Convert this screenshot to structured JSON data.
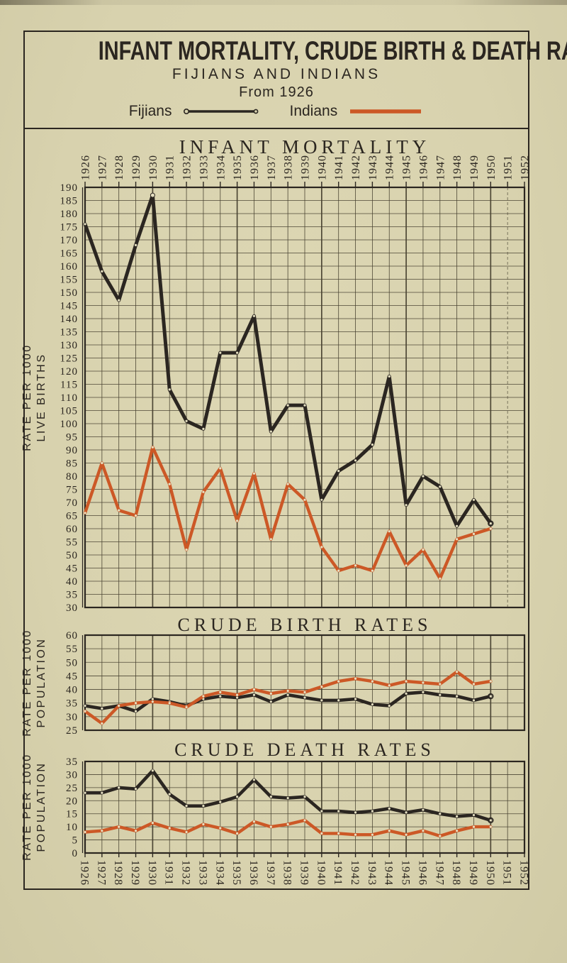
{
  "header": {
    "title": "INFANT MORTALITY, CRUDE BIRTH & DEATH RATES.",
    "subtitle": "FIJIANS AND INDIANS",
    "period": "From 1926"
  },
  "legend": {
    "fijians_label": "Fijians",
    "indians_label": "Indians"
  },
  "colors": {
    "paper": "#d8d2ae",
    "ink": "#2b2620",
    "grid": "#474130",
    "fijians": "#2b2621",
    "indians": "#cc5826",
    "marker": "#e6e0c2"
  },
  "chart_data": [
    {
      "type": "line",
      "title": "INFANT MORTALITY",
      "ylabel": "RATE PER 1000 LIVE BIRTHS",
      "ylabel_lines": [
        "RATE PER 1000",
        "LIVE BIRTHS"
      ],
      "x": [
        "1926",
        "1927",
        "1928",
        "1929",
        "1930",
        "1931",
        "1932",
        "1933",
        "1934",
        "1935",
        "1936",
        "1937",
        "1938",
        "1939",
        "1940",
        "1941",
        "1942",
        "1943",
        "1944",
        "1945",
        "1946",
        "1947",
        "1948",
        "1949",
        "1950",
        "1951",
        "1952"
      ],
      "x_axis_label_side": "top",
      "ylim": [
        30,
        190
      ],
      "y_ticks": [
        190,
        185,
        180,
        175,
        170,
        165,
        160,
        155,
        150,
        145,
        140,
        135,
        130,
        125,
        120,
        115,
        110,
        105,
        100,
        95,
        90,
        85,
        80,
        75,
        70,
        65,
        60,
        55,
        50,
        45,
        40,
        35,
        30
      ],
      "grid": true,
      "legend_position": "top-of-page",
      "series": [
        {
          "name": "Fijians",
          "values": [
            176,
            158,
            147,
            168,
            187,
            113,
            101,
            98,
            127,
            127,
            141,
            97,
            107,
            107,
            71,
            82,
            86,
            92,
            118,
            69,
            80,
            76,
            61,
            71,
            62,
            null,
            null
          ]
        },
        {
          "name": "Indians",
          "values": [
            66,
            85,
            67,
            65,
            91,
            77,
            52,
            74,
            83,
            63,
            81,
            56,
            77,
            71,
            53,
            44,
            46,
            44,
            59,
            46,
            52,
            41,
            56,
            58,
            60,
            null,
            null
          ]
        }
      ]
    },
    {
      "type": "line",
      "title": "CRUDE BIRTH RATES",
      "ylabel": "RATE PER 1000 POPULATION",
      "ylabel_lines": [
        "RATE PER 1000",
        "POPULATION"
      ],
      "x": [
        "1926",
        "1927",
        "1928",
        "1929",
        "1930",
        "1931",
        "1932",
        "1933",
        "1934",
        "1935",
        "1936",
        "1937",
        "1938",
        "1939",
        "1940",
        "1941",
        "1942",
        "1943",
        "1944",
        "1945",
        "1946",
        "1947",
        "1948",
        "1949",
        "1950",
        "1951",
        "1952"
      ],
      "x_axis_label_side": "none",
      "ylim": [
        25,
        60
      ],
      "y_ticks": [
        60,
        55,
        50,
        45,
        40,
        35,
        30,
        25
      ],
      "grid": true,
      "series": [
        {
          "name": "Fijians",
          "values": [
            34,
            33,
            34,
            32,
            36.5,
            35.5,
            34,
            36.5,
            37.5,
            37,
            38,
            35.5,
            38,
            37,
            36,
            36,
            36.5,
            34.5,
            34,
            38.5,
            39,
            38,
            37.5,
            36,
            37.5,
            null,
            null
          ]
        },
        {
          "name": "Indians",
          "values": [
            32,
            27.5,
            34,
            35,
            35.5,
            35,
            33.5,
            37.5,
            39,
            38,
            40,
            38.5,
            39.5,
            39,
            41,
            43,
            44,
            43,
            41.5,
            43,
            42.5,
            42,
            46.5,
            42,
            43,
            null,
            null
          ]
        }
      ]
    },
    {
      "type": "line",
      "title": "CRUDE DEATH RATES",
      "ylabel": "RATE PER 1000 POPULATION",
      "ylabel_lines": [
        "RATE PER 1000",
        "POPULATION"
      ],
      "x": [
        "1926",
        "1927",
        "1928",
        "1929",
        "1930",
        "1931",
        "1932",
        "1933",
        "1934",
        "1935",
        "1936",
        "1937",
        "1938",
        "1939",
        "1940",
        "1941",
        "1942",
        "1943",
        "1944",
        "1945",
        "1946",
        "1947",
        "1948",
        "1949",
        "1950",
        "1951",
        "1952"
      ],
      "x_axis_label_side": "bottom",
      "ylim": [
        0,
        35
      ],
      "y_ticks": [
        35,
        30,
        25,
        20,
        15,
        10,
        5,
        0
      ],
      "grid": true,
      "series": [
        {
          "name": "Fijians",
          "values": [
            23,
            23,
            25,
            24.5,
            31.5,
            22.5,
            18,
            18,
            19.5,
            21.5,
            28,
            21.5,
            21,
            21.5,
            16,
            16,
            15.5,
            16,
            17,
            15.5,
            16.5,
            15,
            14,
            14.5,
            12.5,
            null,
            null
          ]
        },
        {
          "name": "Indians",
          "values": [
            8,
            8.5,
            10,
            8.5,
            11.5,
            9.5,
            8,
            11,
            9.5,
            7.5,
            12,
            10,
            11,
            12.5,
            7.5,
            7.5,
            7,
            7,
            8.5,
            7,
            8.5,
            6.5,
            8.5,
            10,
            10,
            null,
            null
          ]
        }
      ]
    }
  ]
}
